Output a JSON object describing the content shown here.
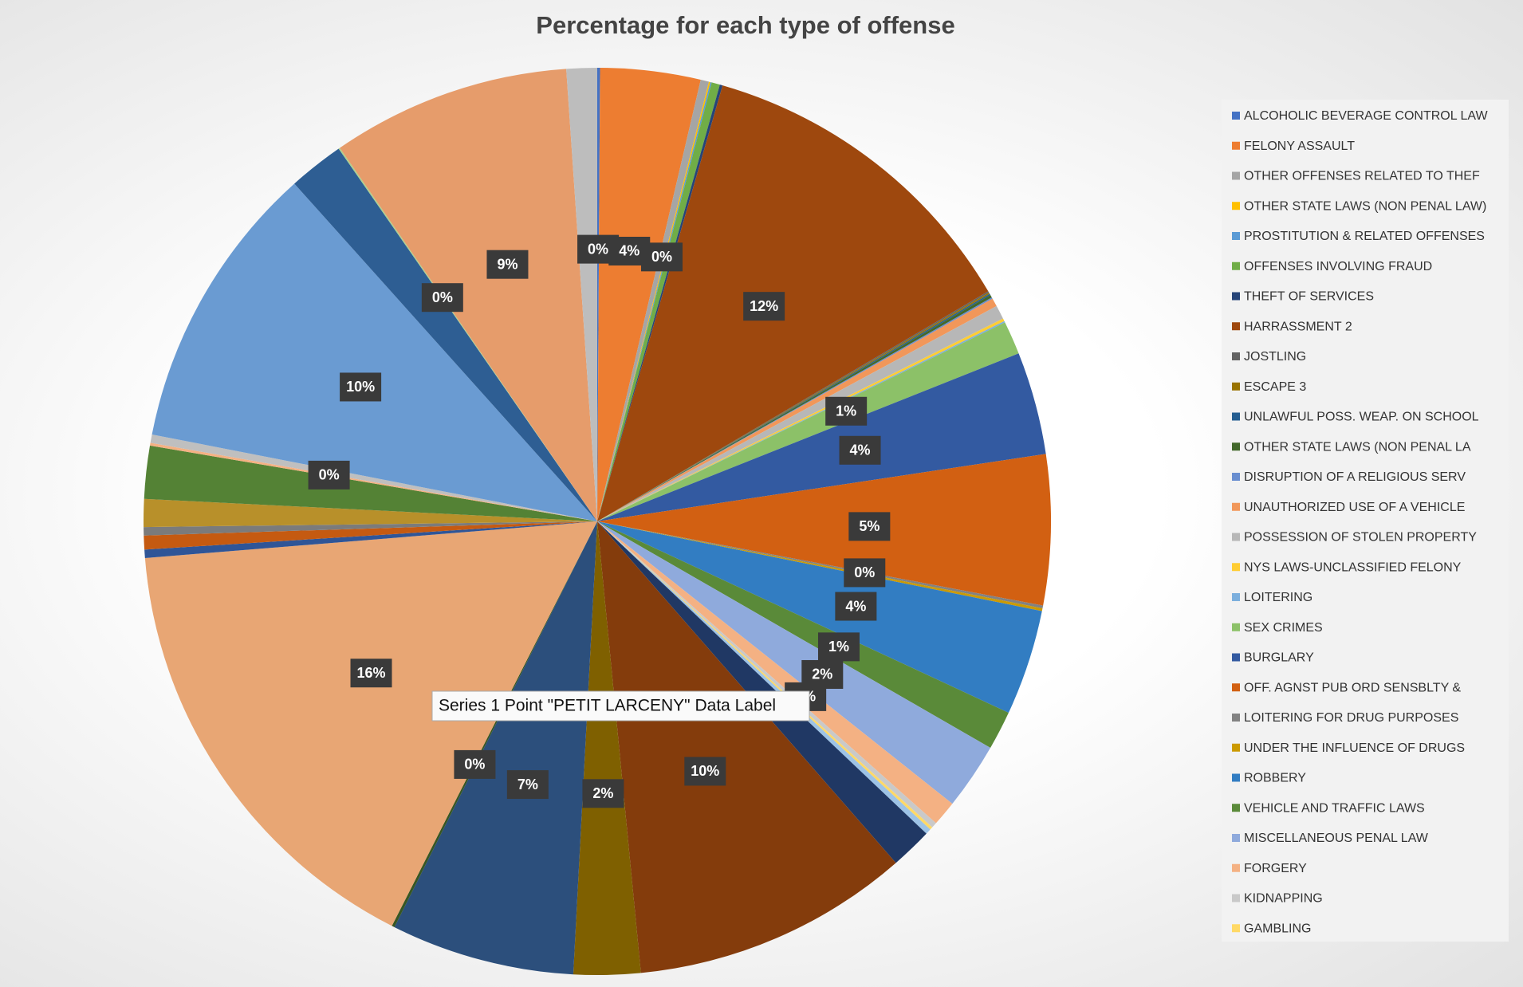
{
  "chart_data": {
    "type": "pie",
    "title": "Percentage for each type of offense",
    "tooltip": "Series 1 Point \"PETIT LARCENY\" Data Label",
    "categories": [
      "ALCOHOLIC BEVERAGE CONTROL LAW",
      "FELONY ASSAULT",
      "OTHER OFFENSES RELATED TO THEF",
      "OTHER STATE LAWS (NON PENAL LAW)",
      "PROSTITUTION & RELATED OFFENSES",
      "OFFENSES INVOLVING FRAUD",
      "THEFT OF SERVICES",
      "HARRASSMENT 2",
      "JOSTLING",
      "ESCAPE 3",
      "UNLAWFUL POSS. WEAP. ON SCHOOL",
      "OTHER STATE LAWS (NON PENAL LA",
      "DISRUPTION OF A RELIGIOUS SERV",
      "UNAUTHORIZED USE OF A VEHICLE",
      "POSSESSION OF STOLEN PROPERTY",
      "NYS LAWS-UNCLASSIFIED FELONY",
      "LOITERING",
      "SEX CRIMES",
      "BURGLARY",
      "OFF. AGNST PUB ORD SENSBLTY &",
      "LOITERING FOR DRUG PURPOSES",
      "UNDER THE INFLUENCE OF DRUGS",
      "ROBBERY",
      "VEHICLE AND TRAFFIC LAWS",
      "MISCELLANEOUS PENAL LAW",
      "FORGERY",
      "KIDNAPPING",
      "GAMBLING",
      null,
      null,
      null,
      null,
      null,
      null,
      null,
      null,
      null,
      null,
      null,
      null,
      null,
      null,
      null,
      null,
      null,
      null,
      null
    ],
    "values": [
      0.1,
      3.6,
      0.3,
      0.05,
      0.05,
      0.3,
      0.1,
      12.2,
      0.05,
      0.05,
      0.05,
      0.1,
      0.05,
      0.3,
      0.5,
      0.1,
      0.05,
      1.2,
      3.7,
      5.4,
      0.1,
      0.1,
      3.8,
      1.4,
      2.4,
      0.9,
      0.2,
      0.1,
      0.2,
      1.5,
      10,
      2.4,
      6.6,
      0.1,
      16.4,
      0.3,
      0.5,
      0.3,
      1.0,
      1.9,
      0.1,
      0.3,
      10.4,
      2,
      0.05,
      8.6,
      1.1
    ],
    "value_labels": [
      "0%",
      "4%",
      "0%",
      null,
      null,
      null,
      null,
      "12%",
      null,
      null,
      null,
      null,
      null,
      null,
      null,
      null,
      null,
      "1%",
      "4%",
      "5%",
      "0%",
      null,
      "4%",
      "1%",
      "2%",
      "1%",
      null,
      null,
      null,
      null,
      "10%",
      "2%",
      "7%",
      "0%",
      "16%",
      null,
      null,
      null,
      null,
      null,
      "0%",
      null,
      "10%",
      null,
      "0%",
      "9%",
      null
    ],
    "colors": [
      "#4472C4",
      "#ED7D31",
      "#A5A5A5",
      "#FFC000",
      "#5B9BD5",
      "#70AD47",
      "#264478",
      "#9E480E",
      "#636363",
      "#997300",
      "#255E91",
      "#43682B",
      "#698ED0",
      "#F1975A",
      "#B7B7B7",
      "#FFCD33",
      "#7CAFDD",
      "#8CC168",
      "#335AA1",
      "#D26012",
      "#828282",
      "#CC9A00",
      "#327DC2",
      "#5A8A39",
      "#8FAADC",
      "#F4B183",
      "#C9C9C9",
      "#FFD966",
      "#9DC3E6",
      "#203864",
      "#843C0C",
      "#7F6000",
      "#2C4F7C",
      "#375623",
      "#E8A674",
      "#2F5597",
      "#C55A11",
      "#7B7B7B",
      "#B8902A",
      "#548235",
      "#F4B183",
      "#BFBFBF",
      "#6A9BD2",
      "#2E5E93",
      "#A9D18E",
      "#E69C6B",
      "#BDBDBD"
    ],
    "legend": "right"
  }
}
